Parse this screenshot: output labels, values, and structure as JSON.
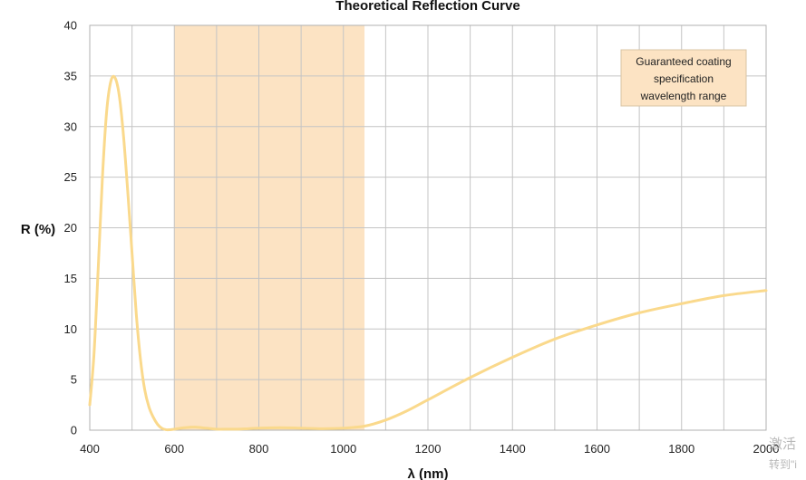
{
  "chart_data": {
    "type": "line",
    "title": "Theoretical Reflection Curve",
    "xlabel": "λ (nm)",
    "ylabel": "R (%)",
    "xlim": [
      400,
      2000
    ],
    "ylim": [
      0,
      40
    ],
    "x_ticks": [
      400,
      600,
      800,
      1000,
      1200,
      1400,
      1600,
      1800,
      2000
    ],
    "y_ticks": [
      0,
      5,
      10,
      15,
      20,
      25,
      30,
      35,
      40
    ],
    "grid": true,
    "series": [
      {
        "color": "#fad98c",
        "x": [
          400,
          410,
          420,
          430,
          440,
          450,
          460,
          470,
          480,
          490,
          500,
          510,
          520,
          530,
          540,
          550,
          560,
          570,
          580,
          590,
          600,
          625,
          650,
          675,
          700,
          725,
          750,
          775,
          800,
          850,
          900,
          950,
          1000,
          1050,
          1100,
          1150,
          1200,
          1300,
          1400,
          1500,
          1600,
          1700,
          1800,
          1900,
          2000
        ],
        "y": [
          2.5,
          7.5,
          16,
          25,
          31.5,
          34.5,
          34.8,
          33,
          29,
          23.5,
          17.5,
          11.5,
          7,
          4,
          2.3,
          1.3,
          0.6,
          0.2,
          0.05,
          0.05,
          0.1,
          0.25,
          0.3,
          0.2,
          0.1,
          0.1,
          0.1,
          0.15,
          0.2,
          0.25,
          0.2,
          0.15,
          0.2,
          0.4,
          1.0,
          1.9,
          3.0,
          5.2,
          7.2,
          9.0,
          10.4,
          11.6,
          12.5,
          13.3,
          13.8
        ]
      }
    ],
    "shaded_region": {
      "x_range": [
        600,
        1050
      ],
      "color": "#fce3c3",
      "legend": [
        "Guaranteed coating",
        "specification",
        "wavelength range"
      ]
    }
  },
  "watermark": {
    "line1": "激活",
    "line2": "转到\"i"
  }
}
